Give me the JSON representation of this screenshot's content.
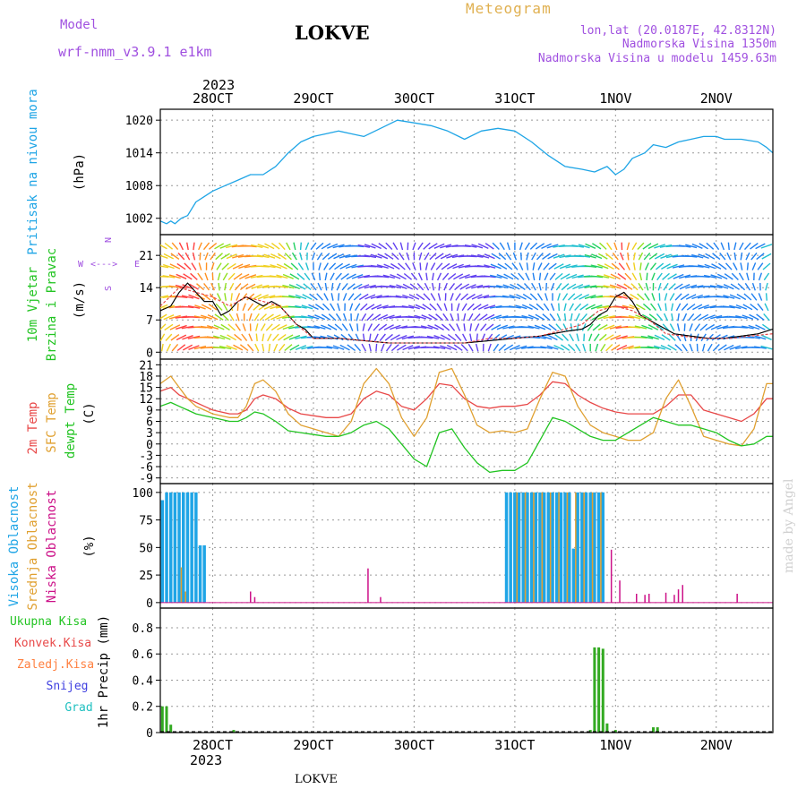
{
  "header": {
    "model_label": "Model",
    "model_name": "wrf-nmm_v3.9.1 e1km",
    "station": "LOKVE",
    "title": "Meteogram",
    "lonlat": "lon,lat (20.0187E, 42.8312N)",
    "elevation": "Nadmorska Visina 1350m",
    "model_elevation": "Nadmorska Visina u modelu 1459.63m",
    "year_top": "2023",
    "year_bottom": "2023",
    "footer_station": "LOKVE",
    "watermark": "made by Angel"
  },
  "colors": {
    "pressure": "#1fa5e6",
    "temp2m": "#e84848",
    "sfc": "#e0a030",
    "dewpt": "#22c422",
    "cloud_high": "#1fa5e6",
    "cloud_mid": "#e0a030",
    "cloud_low": "#cc1188",
    "precip": "#33aa22",
    "wind_speed": "#000000",
    "gust": "#e84848",
    "purple": "#a050e0"
  },
  "chart_data": [
    {
      "panel": "pressure",
      "type": "line",
      "ylabel": [
        "Pritisak na nivou mora",
        "(hPa)"
      ],
      "yticks": [
        1002,
        1008,
        1014,
        1020
      ],
      "ylim": [
        999,
        1022
      ],
      "x_labels": [
        "28OCT",
        "29OCT",
        "30OCT",
        "31OCT",
        "1NOV",
        "2NOV"
      ],
      "x_hours": [
        0,
        24,
        48,
        72,
        96,
        120
      ],
      "xlim": [
        -12.5,
        133.5
      ],
      "series": [
        {
          "x": [
            -12.5,
            -11,
            -10,
            -9,
            -7.5,
            -6,
            -4,
            -2,
            0,
            3,
            6,
            9,
            12,
            15,
            18,
            21,
            24,
            27,
            30,
            33,
            36,
            40,
            44,
            48,
            52,
            56,
            60,
            64,
            68,
            72,
            76,
            80,
            84,
            88,
            91,
            94,
            96,
            98,
            100,
            103,
            105,
            108,
            111,
            114,
            117,
            120,
            122,
            126,
            130,
            132,
            133.5
          ],
          "y": [
            1001.5,
            1001,
            1001.5,
            1001,
            1002,
            1002.5,
            1005,
            1006,
            1007,
            1008,
            1009,
            1010,
            1010,
            1011.5,
            1014,
            1016,
            1017,
            1017.5,
            1018,
            1017.5,
            1017,
            1018.5,
            1020,
            1019.5,
            1019,
            1018,
            1016.5,
            1018,
            1018.5,
            1018,
            1016,
            1013.5,
            1011.5,
            1011,
            1010.5,
            1011.5,
            1010,
            1011,
            1013,
            1014,
            1015.5,
            1015,
            1016,
            1016.5,
            1017,
            1017,
            1016.5,
            1016.5,
            1016,
            1015,
            1014
          ]
        }
      ]
    },
    {
      "panel": "wind",
      "type": "line",
      "ylabel": [
        "10m Vjetar",
        "Brzina i Pravac",
        "(m/s)"
      ],
      "compass": {
        "n": "N",
        "e": "E",
        "s": "S",
        "w": "W"
      },
      "yticks": [
        0,
        7,
        14,
        21
      ],
      "ylim": [
        -1.5,
        25.5
      ],
      "series": [
        {
          "name": "speed",
          "x": [
            -12.5,
            -10,
            -8,
            -6,
            -4,
            -2,
            0,
            2,
            4,
            6,
            8,
            10,
            12,
            14,
            16,
            18,
            20,
            22,
            24,
            30,
            36,
            42,
            48,
            54,
            60,
            66,
            72,
            78,
            84,
            88,
            90,
            92,
            94,
            96,
            98,
            100,
            102,
            106,
            110,
            114,
            118,
            122,
            126,
            130,
            133.5
          ],
          "y": [
            9,
            10,
            13,
            15,
            13,
            11,
            11,
            8,
            9,
            11,
            12,
            11,
            10,
            11,
            10,
            8,
            6,
            5,
            3,
            3,
            2.5,
            2,
            2,
            2,
            2,
            2.5,
            3,
            3.5,
            4.5,
            5,
            6,
            8,
            9,
            12,
            13,
            11,
            8,
            6,
            4,
            3.5,
            3,
            3,
            3.5,
            4,
            5
          ]
        },
        {
          "name": "gust",
          "x": [
            -12.5,
            -8,
            -4,
            0,
            4,
            8,
            12,
            16,
            20,
            24,
            30,
            36,
            42,
            48,
            54,
            60,
            66,
            72,
            78,
            84,
            88,
            92,
            96,
            100,
            104,
            108,
            112,
            116,
            120,
            124,
            128,
            133.5
          ],
          "y": [
            10,
            14,
            13,
            12,
            10,
            12,
            11,
            10,
            6,
            3,
            3,
            2.5,
            2,
            2,
            2,
            2,
            3,
            3,
            3.5,
            5,
            6,
            9,
            10,
            9,
            7,
            4,
            3.5,
            3,
            3,
            3,
            3.5,
            4
          ]
        }
      ]
    },
    {
      "panel": "temperature",
      "type": "line",
      "ylabel": [
        "2m Temp",
        "SFC Temp",
        "dewpt Temp",
        "(C)"
      ],
      "yticks": [
        -9,
        -6,
        -3,
        0,
        3,
        6,
        9,
        12,
        15,
        18,
        21
      ],
      "ylim": [
        -10.5,
        22.5
      ],
      "series": [
        {
          "name": "2m Temp",
          "x": [
            -12.5,
            -10,
            -8,
            -6,
            -4,
            -2,
            0,
            2,
            4,
            6,
            8,
            10,
            12,
            15,
            18,
            21,
            24,
            27,
            30,
            33,
            36,
            39,
            42,
            45,
            48,
            51,
            54,
            57,
            60,
            63,
            66,
            69,
            72,
            75,
            78,
            81,
            84,
            87,
            90,
            93,
            96,
            99,
            102,
            105,
            108,
            111,
            114,
            117,
            120,
            123,
            126,
            129,
            132,
            133.5
          ],
          "y": [
            14,
            15,
            13,
            12,
            11,
            10,
            9,
            8.5,
            8,
            8,
            9,
            12,
            13,
            12,
            9.5,
            8,
            7.5,
            7,
            7,
            8,
            12,
            14,
            13,
            10,
            9,
            12,
            16,
            15.5,
            12,
            10,
            9.5,
            10,
            10,
            10.5,
            13,
            16.5,
            16,
            13,
            11,
            9.5,
            8.5,
            8,
            8,
            8,
            10,
            13,
            13,
            9,
            8,
            7,
            6,
            8,
            12,
            12
          ]
        },
        {
          "name": "SFC Temp",
          "x": [
            -12.5,
            -10,
            -8,
            -6,
            -4,
            -2,
            0,
            2,
            4,
            6,
            8,
            10,
            12,
            15,
            18,
            21,
            24,
            27,
            30,
            33,
            36,
            39,
            42,
            45,
            48,
            51,
            54,
            57,
            60,
            63,
            66,
            69,
            72,
            75,
            78,
            81,
            84,
            87,
            90,
            93,
            96,
            99,
            102,
            105,
            108,
            111,
            114,
            117,
            120,
            123,
            126,
            129,
            132,
            133.5
          ],
          "y": [
            16,
            18,
            15,
            12,
            10,
            9,
            8,
            7.5,
            7,
            7,
            10,
            16,
            17,
            14,
            8,
            5,
            4,
            3,
            2,
            6,
            16,
            20,
            16,
            7,
            2,
            7,
            19,
            20,
            13,
            5,
            3,
            3.5,
            3,
            4,
            12,
            19,
            18,
            10,
            5,
            3,
            2,
            1,
            1,
            3,
            12,
            17,
            10,
            2,
            1,
            0,
            -0.5,
            4,
            16,
            16
          ]
        },
        {
          "name": "dewpt Temp",
          "x": [
            -12.5,
            -10,
            -8,
            -6,
            -4,
            -2,
            0,
            2,
            4,
            6,
            8,
            10,
            12,
            15,
            18,
            21,
            24,
            27,
            30,
            33,
            36,
            39,
            42,
            45,
            48,
            51,
            54,
            57,
            60,
            63,
            66,
            69,
            72,
            75,
            78,
            81,
            84,
            87,
            90,
            93,
            96,
            99,
            102,
            105,
            108,
            111,
            114,
            117,
            120,
            123,
            126,
            129,
            132,
            133.5
          ],
          "y": [
            10,
            11,
            10,
            9,
            8,
            7.5,
            7,
            6.5,
            6,
            6,
            7,
            8.5,
            8,
            6,
            3.5,
            3,
            2.5,
            2,
            2,
            3,
            5,
            6,
            4,
            0,
            -4,
            -6,
            3,
            4,
            -1,
            -5,
            -7.5,
            -7,
            -7,
            -5,
            1,
            7,
            6,
            4,
            2,
            1,
            1,
            3,
            5,
            7,
            6,
            5,
            5,
            4,
            3,
            1,
            -0.5,
            0,
            2,
            2
          ]
        }
      ]
    },
    {
      "panel": "clouds",
      "type": "bar",
      "ylabel": [
        "Visoka Oblacnost",
        "Srednja Oblacnost",
        "Niska Oblacnost",
        "(%)"
      ],
      "yticks": [
        0,
        25,
        50,
        75,
        100
      ],
      "ylim": [
        -5,
        108
      ],
      "series": [
        {
          "name": "Visoka Oblacnost",
          "x": [
            -12,
            -11,
            -10,
            -9,
            -8,
            -7,
            -6,
            -5,
            -4,
            -3,
            -2,
            70,
            71,
            72,
            73,
            74,
            75,
            76,
            77,
            78,
            79,
            80,
            81,
            82,
            83,
            84,
            85,
            86,
            87,
            88,
            89,
            90,
            91,
            92,
            93
          ],
          "values": [
            93,
            100,
            100,
            100,
            100,
            100,
            100,
            100,
            100,
            52,
            52,
            100,
            100,
            100,
            100,
            100,
            100,
            100,
            100,
            100,
            100,
            100,
            100,
            100,
            100,
            100,
            100,
            49,
            100,
            100,
            100,
            100,
            100,
            100,
            100
          ]
        },
        {
          "name": "Srednja Oblacnost",
          "x": [
            -7.5,
            -6.5,
            72.5,
            74.5,
            76.5,
            78.5,
            80.5,
            82.5,
            84.5,
            86.5,
            88.5,
            90.5,
            92.5
          ],
          "values": [
            32,
            10,
            100,
            100,
            100,
            100,
            100,
            100,
            100,
            100,
            100,
            100,
            100
          ]
        },
        {
          "name": "Niska Oblacnost",
          "x": [
            9,
            10,
            37,
            40,
            95,
            97,
            101,
            103,
            104,
            108,
            110,
            111,
            112,
            125
          ],
          "values": [
            10,
            5,
            31,
            5,
            48,
            20,
            8,
            7,
            8,
            9,
            7,
            12,
            16,
            8
          ]
        }
      ]
    },
    {
      "panel": "precipitation",
      "type": "bar",
      "ylabel": [
        "1hr Precip (mm)"
      ],
      "legend": [
        "Ukupna Kisa",
        "Konvek.Kisa",
        "Zaledj.Kisa",
        "Snijeg",
        "Grad"
      ],
      "yticks": [
        0,
        0.2,
        0.4,
        0.6,
        0.8
      ],
      "ylim": [
        0,
        0.95
      ],
      "series": [
        {
          "name": "Ukupna Kisa",
          "x": [
            -12,
            -11,
            -10,
            5,
            90,
            91,
            92,
            93,
            94,
            96,
            105,
            106
          ],
          "values": [
            0.2,
            0.2,
            0.06,
            0.02,
            0.02,
            0.65,
            0.65,
            0.64,
            0.07,
            0.02,
            0.04,
            0.04
          ]
        }
      ]
    }
  ]
}
